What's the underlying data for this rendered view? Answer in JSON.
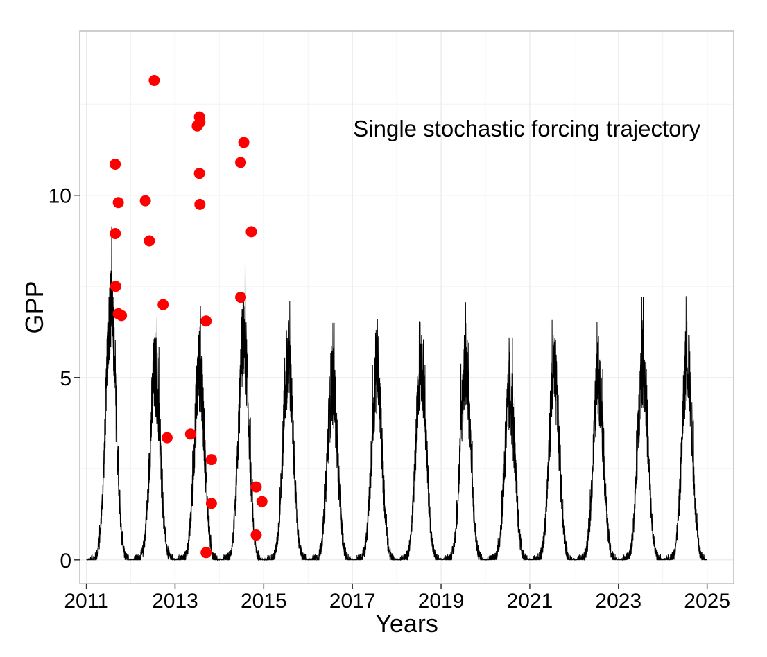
{
  "chart_data": {
    "type": "line",
    "xlabel": "Years",
    "ylabel": "GPP",
    "annotation": "Single stochastic forcing trajectory",
    "xlim": [
      2010.85,
      2025.6
    ],
    "ylim": [
      -0.65,
      14.5
    ],
    "x_ticks": [
      2011,
      2013,
      2015,
      2017,
      2019,
      2021,
      2023,
      2025
    ],
    "x_tick_labels": [
      "2011",
      "2013",
      "2015",
      "2017",
      "2019",
      "2021",
      "2023",
      "2025"
    ],
    "y_ticks": [
      0,
      5,
      10
    ],
    "y_tick_labels": [
      "0",
      "5",
      "10"
    ],
    "x_minor_ticks": [
      2012,
      2014,
      2016,
      2018,
      2020,
      2022,
      2024
    ],
    "y_minor_ticks": [
      2.5,
      7.5,
      12.5
    ],
    "grid": true,
    "colors": {
      "line": "#000000",
      "points": "#ff0000",
      "grid": "#ebebeb",
      "panel_border": "#b3b3b3"
    },
    "series": [
      {
        "style": "line",
        "seasonal_peaks": [
          {
            "year": 2011,
            "peak": 9.2
          },
          {
            "year": 2012,
            "peak": 6.8
          },
          {
            "year": 2013,
            "peak": 7.0
          },
          {
            "year": 2014,
            "peak": 8.2
          },
          {
            "year": 2015,
            "peak": 7.3
          },
          {
            "year": 2016,
            "peak": 6.5
          },
          {
            "year": 2017,
            "peak": 6.9
          },
          {
            "year": 2018,
            "peak": 7.3
          },
          {
            "year": 2019,
            "peak": 7.1
          },
          {
            "year": 2020,
            "peak": 6.1
          },
          {
            "year": 2021,
            "peak": 6.8
          },
          {
            "year": 2022,
            "peak": 6.6
          },
          {
            "year": 2023,
            "peak": 7.2
          },
          {
            "year": 2024,
            "peak": 7.4
          }
        ]
      },
      {
        "style": "points",
        "points": [
          {
            "x": 2011.65,
            "y": 10.85
          },
          {
            "x": 2011.72,
            "y": 9.8
          },
          {
            "x": 2011.65,
            "y": 8.95
          },
          {
            "x": 2011.66,
            "y": 7.5
          },
          {
            "x": 2011.72,
            "y": 6.75
          },
          {
            "x": 2011.79,
            "y": 6.7
          },
          {
            "x": 2012.33,
            "y": 9.85
          },
          {
            "x": 2012.42,
            "y": 8.75
          },
          {
            "x": 2012.53,
            "y": 13.15
          },
          {
            "x": 2012.73,
            "y": 7.0
          },
          {
            "x": 2012.82,
            "y": 3.35
          },
          {
            "x": 2013.35,
            "y": 3.45
          },
          {
            "x": 2013.55,
            "y": 12.15
          },
          {
            "x": 2013.5,
            "y": 11.9
          },
          {
            "x": 2013.56,
            "y": 12.0
          },
          {
            "x": 2013.55,
            "y": 10.6
          },
          {
            "x": 2013.56,
            "y": 9.75
          },
          {
            "x": 2013.7,
            "y": 6.55
          },
          {
            "x": 2013.82,
            "y": 2.75
          },
          {
            "x": 2013.82,
            "y": 1.55
          },
          {
            "x": 2013.7,
            "y": 0.2
          },
          {
            "x": 2014.48,
            "y": 10.9
          },
          {
            "x": 2014.55,
            "y": 11.45
          },
          {
            "x": 2014.48,
            "y": 7.2
          },
          {
            "x": 2014.72,
            "y": 9.0
          },
          {
            "x": 2014.83,
            "y": 2.0
          },
          {
            "x": 2014.96,
            "y": 1.6
          },
          {
            "x": 2014.83,
            "y": 0.68
          }
        ]
      }
    ]
  }
}
